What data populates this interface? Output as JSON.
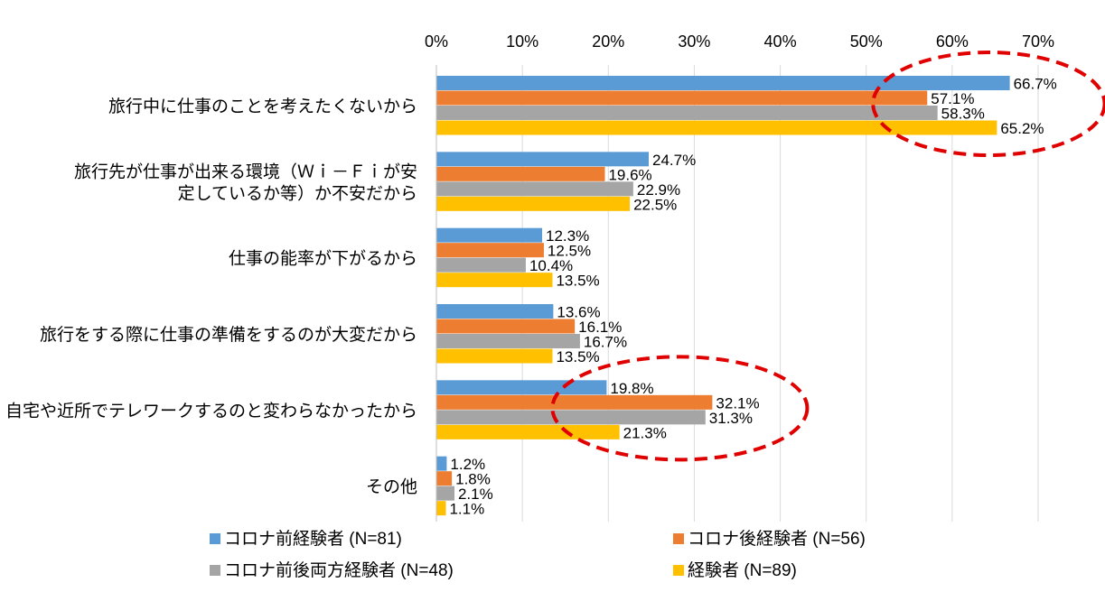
{
  "chart_data": {
    "type": "bar",
    "orientation": "horizontal",
    "title": "",
    "xlabel": "",
    "ylabel": "",
    "xlim": [
      0,
      70
    ],
    "x_ticks": [
      "0%",
      "10%",
      "20%",
      "30%",
      "40%",
      "50%",
      "60%",
      "70%"
    ],
    "grid": "vertical",
    "legend_position": "bottom",
    "categories": [
      [
        "旅行中に仕事のことを考えたくないから"
      ],
      [
        "旅行先が仕事が出来る環境（Ｗｉ－Ｆｉが安",
        "定しているか等）か不安だから"
      ],
      [
        "仕事の能率が下がるから"
      ],
      [
        "旅行をする際に仕事の準備をするのが大変だから"
      ],
      [
        "自宅や近所でテレワークするのと変わらなかったから"
      ],
      [
        "その他"
      ]
    ],
    "series": [
      {
        "name": "コロナ前経験者 (N=81)",
        "color": "#5B9BD5",
        "values": [
          66.7,
          24.7,
          12.3,
          13.6,
          19.8,
          1.2
        ],
        "labels": [
          "66.7%",
          "24.7%",
          "12.3%",
          "13.6%",
          "19.8%",
          "1.2%"
        ]
      },
      {
        "name": "コロナ後経験者 (N=56)",
        "color": "#ED7D31",
        "values": [
          57.1,
          19.6,
          12.5,
          16.1,
          32.1,
          1.8
        ],
        "labels": [
          "57.1%",
          "19.6%",
          "12.5%",
          "16.1%",
          "32.1%",
          "1.8%"
        ]
      },
      {
        "name": "コロナ前後両方経験者 (N=48)",
        "color": "#A5A5A5",
        "values": [
          58.3,
          22.9,
          10.4,
          16.7,
          31.3,
          2.1
        ],
        "labels": [
          "58.3%",
          "22.9%",
          "10.4%",
          "16.7%",
          "31.3%",
          "2.1%"
        ]
      },
      {
        "name": "経験者 (N=89)",
        "color": "#FFC000",
        "values": [
          65.2,
          22.5,
          13.5,
          13.5,
          21.3,
          1.1
        ],
        "labels": [
          "65.2%",
          "22.5%",
          "13.5%",
          "13.5%",
          "21.3%",
          "1.1%"
        ]
      }
    ],
    "annotations": [
      {
        "type": "dashed-ellipse",
        "color": "#E00000",
        "around_category": 0
      },
      {
        "type": "dashed-ellipse",
        "color": "#E00000",
        "around_category": 4
      }
    ]
  }
}
